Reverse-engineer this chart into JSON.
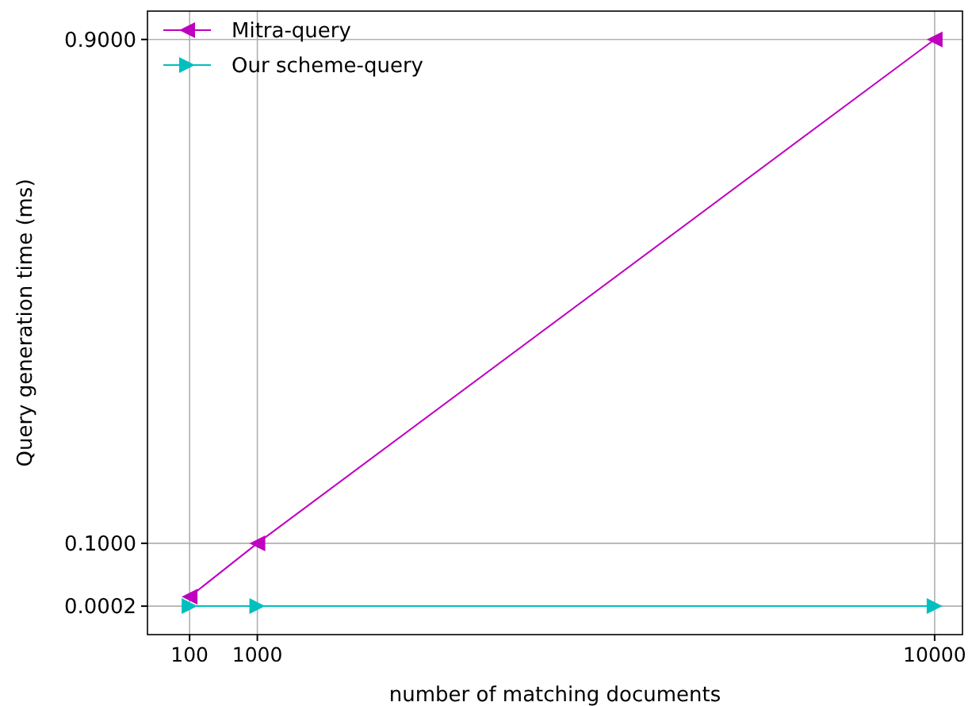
{
  "chart_data": {
    "type": "line",
    "xlabel": "number of matching documents",
    "ylabel": "Query generation time (ms)",
    "x": [
      100,
      1000,
      10000
    ],
    "series": [
      {
        "name": "Mitra-query",
        "color": "#bf00bf",
        "values": [
          0.015,
          0.1,
          0.9
        ],
        "marker": "triangle-left"
      },
      {
        "name": "Our scheme-query",
        "color": "#00bfbf",
        "values": [
          0.0002,
          0.0002,
          0.0002
        ],
        "marker": "triangle-right"
      }
    ],
    "xlim": [
      -460,
      10370
    ],
    "ylim": [
      -0.045,
      0.945
    ],
    "xticks": [
      100,
      1000,
      10000
    ],
    "yticks": [
      {
        "value": 0.0002,
        "label": "0.0002"
      },
      {
        "value": 0.1,
        "label": "0.1000"
      },
      {
        "value": 0.9,
        "label": "0.9000"
      }
    ],
    "grid": true,
    "legend": "top left",
    "line_style": "solid"
  }
}
